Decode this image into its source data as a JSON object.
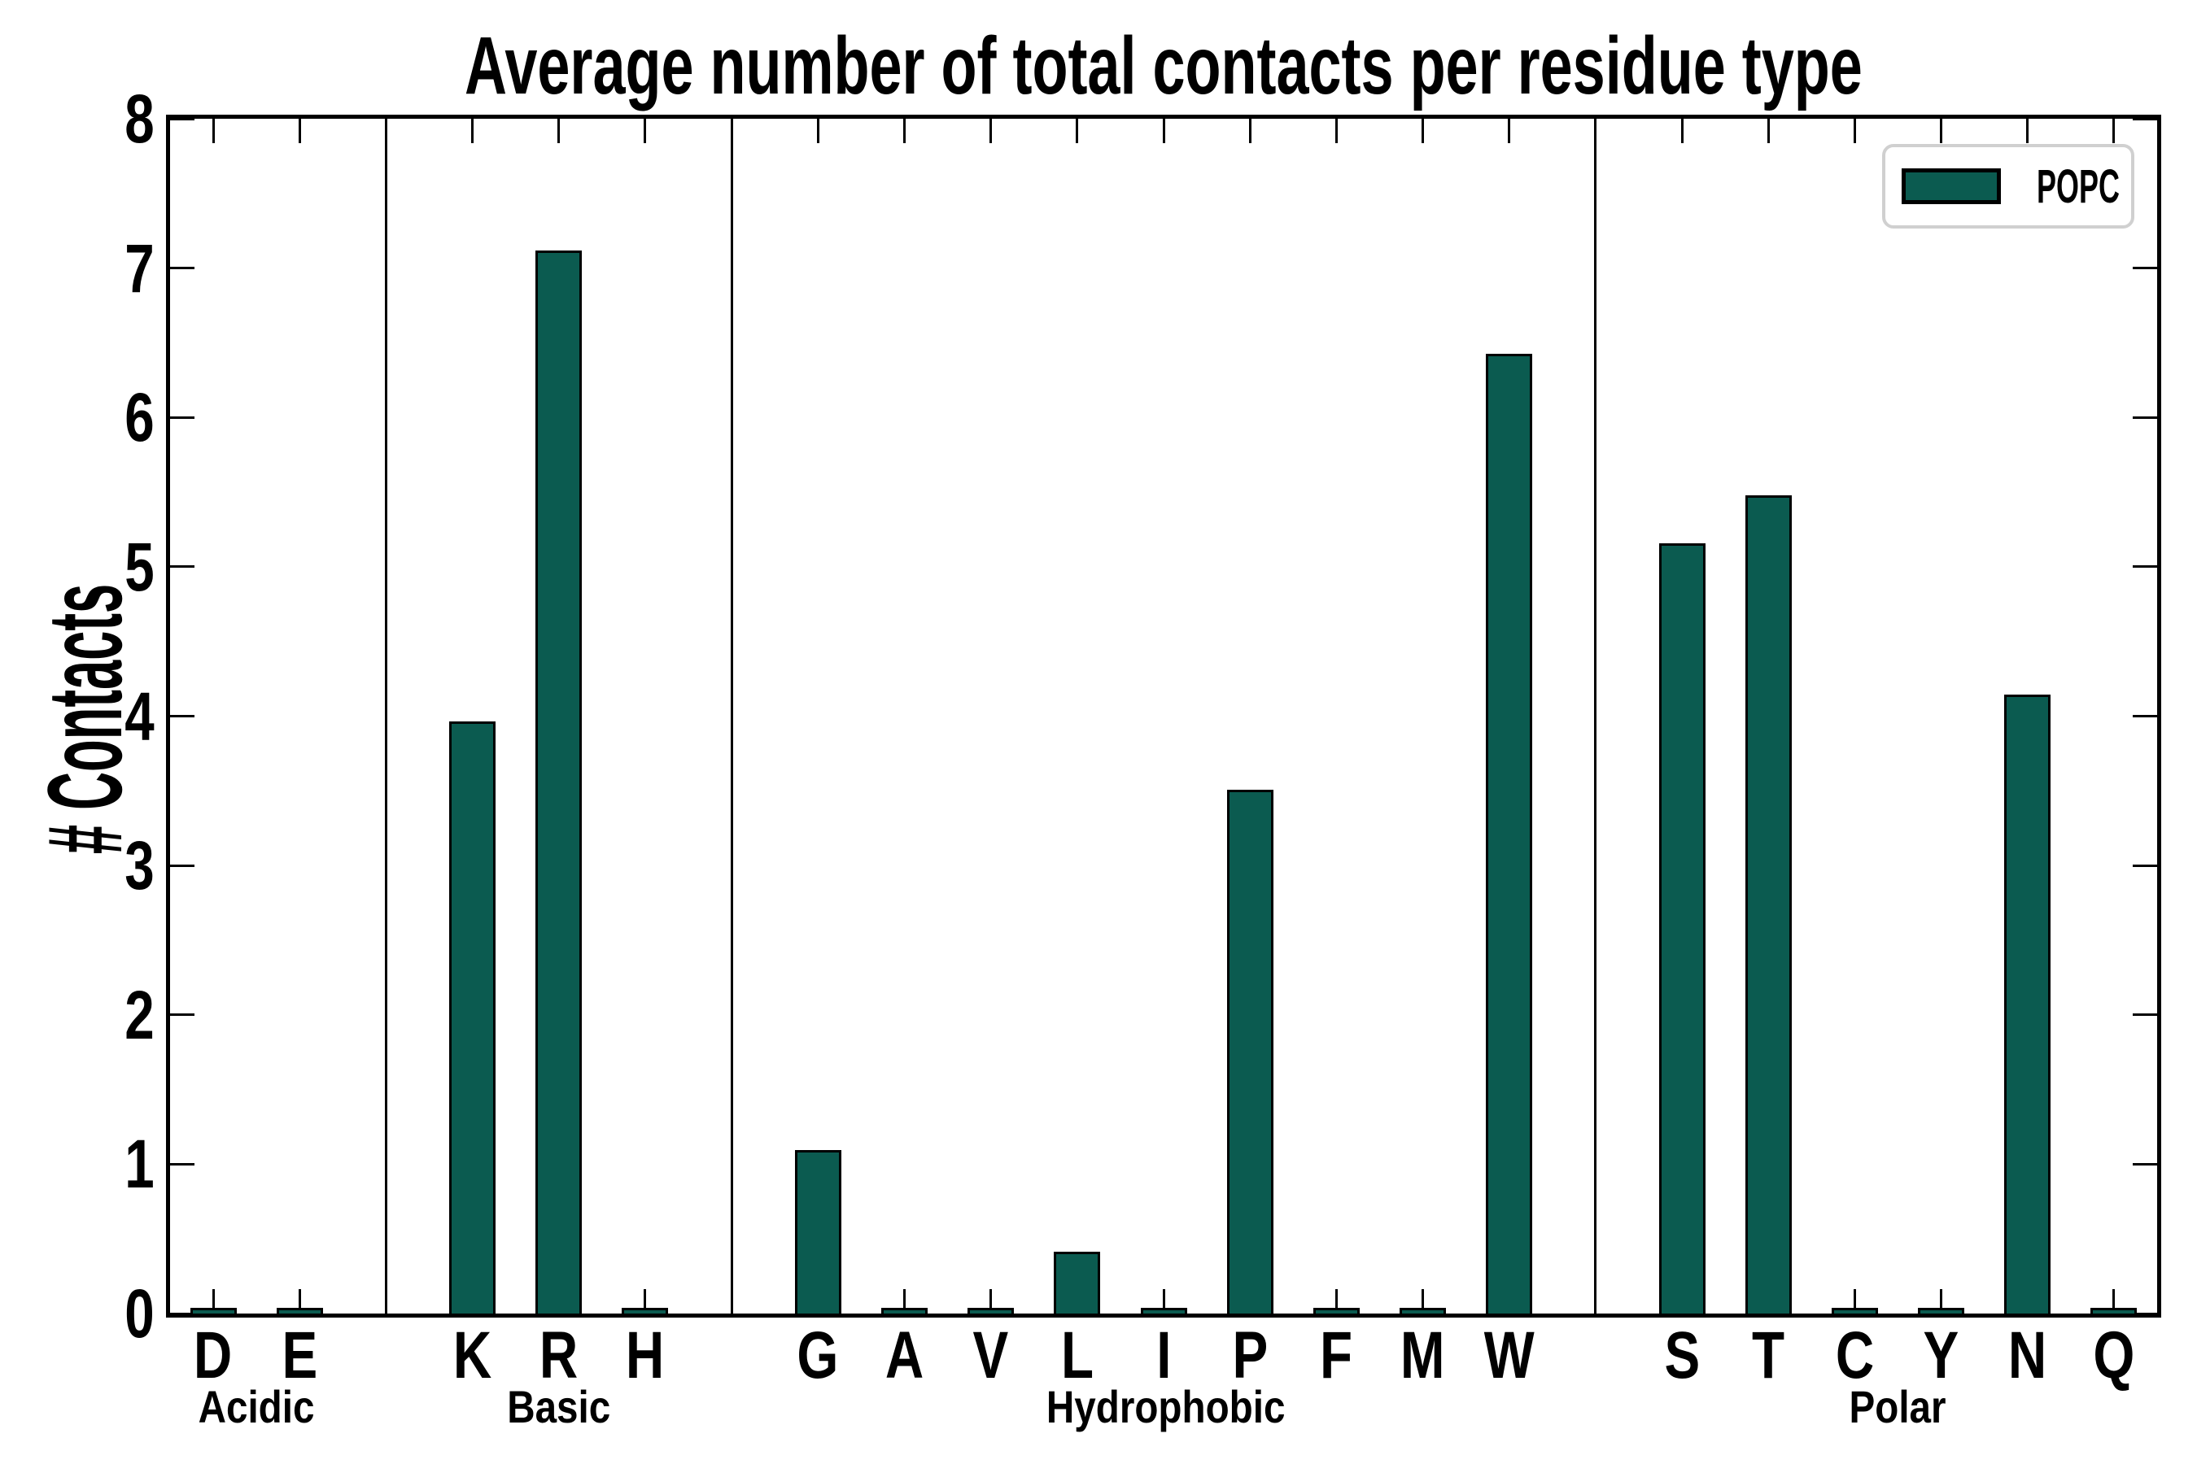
{
  "chart_data": {
    "type": "bar",
    "title": "Average number of total contacts per residue type",
    "ylabel": "# Contacts",
    "xlabel": "",
    "ylim": [
      0,
      8
    ],
    "yticks": [
      0,
      1,
      2,
      3,
      4,
      5,
      6,
      7,
      8
    ],
    "grid": false,
    "legend_position": "upper right",
    "series": [
      {
        "name": "POPC",
        "color": "#0b5b50"
      }
    ],
    "groups": [
      {
        "label": "Acidic",
        "categories": [
          "D",
          "E"
        ],
        "values": [
          0.02,
          0.02
        ]
      },
      {
        "label": "Basic",
        "categories": [
          "K",
          "R",
          "H"
        ],
        "values": [
          3.95,
          7.1,
          0.02
        ]
      },
      {
        "label": "Hydrophobic",
        "categories": [
          "G",
          "A",
          "V",
          "L",
          "I",
          "P",
          "F",
          "M",
          "W"
        ],
        "values": [
          1.08,
          0.02,
          0.02,
          0.4,
          0.02,
          3.49,
          0.02,
          0.02,
          6.41
        ]
      },
      {
        "label": "Polar",
        "categories": [
          "S",
          "T",
          "C",
          "Y",
          "N",
          "Q"
        ],
        "values": [
          5.14,
          5.46,
          0.02,
          0.02,
          4.13,
          0.02
        ]
      }
    ],
    "colors": {
      "bar_fill": "#0b5b50",
      "bar_edge": "#000000",
      "axis": "#000000",
      "legend_border": "#d0d0d0",
      "background": "#ffffff",
      "text": "#000000"
    }
  }
}
